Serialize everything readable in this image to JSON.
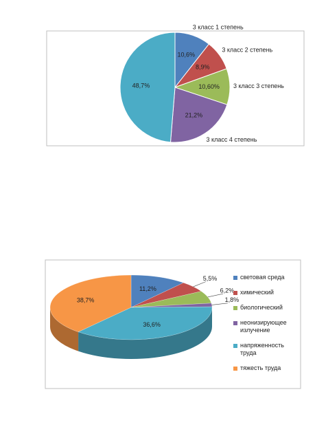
{
  "chart_data": [
    {
      "type": "pie",
      "categories": [
        "3 класс 1 степень",
        "3 класс 2 степень",
        "3 класс 3 степень",
        "3 класс 4 степень",
        null
      ],
      "values": [
        10.6,
        8.9,
        10.6,
        21.2,
        48.7
      ],
      "value_labels": [
        "10,6%",
        "8,9%",
        "10,60%",
        "21,2%",
        "48,7%"
      ],
      "colors": [
        "#4f81bd",
        "#c0504d",
        "#9bbb59",
        "#8064a2",
        "#4bacc6"
      ]
    },
    {
      "type": "pie3d",
      "categories": [
        "световая среда",
        "химический",
        "биологический",
        "неонизирующее излучение",
        "напряженность труда",
        "тяжесть труда"
      ],
      "values": [
        11.2,
        5.5,
        6.2,
        1.8,
        36.6,
        38.7
      ],
      "value_labels": [
        "11,2%",
        "5,5%",
        "6,2%",
        "1,8%",
        "36,6%",
        "38,7%"
      ],
      "colors": [
        "#4f81bd",
        "#c0504d",
        "#9bbb59",
        "#8064a2",
        "#4bacc6",
        "#f79646"
      ],
      "legend": "right"
    }
  ]
}
